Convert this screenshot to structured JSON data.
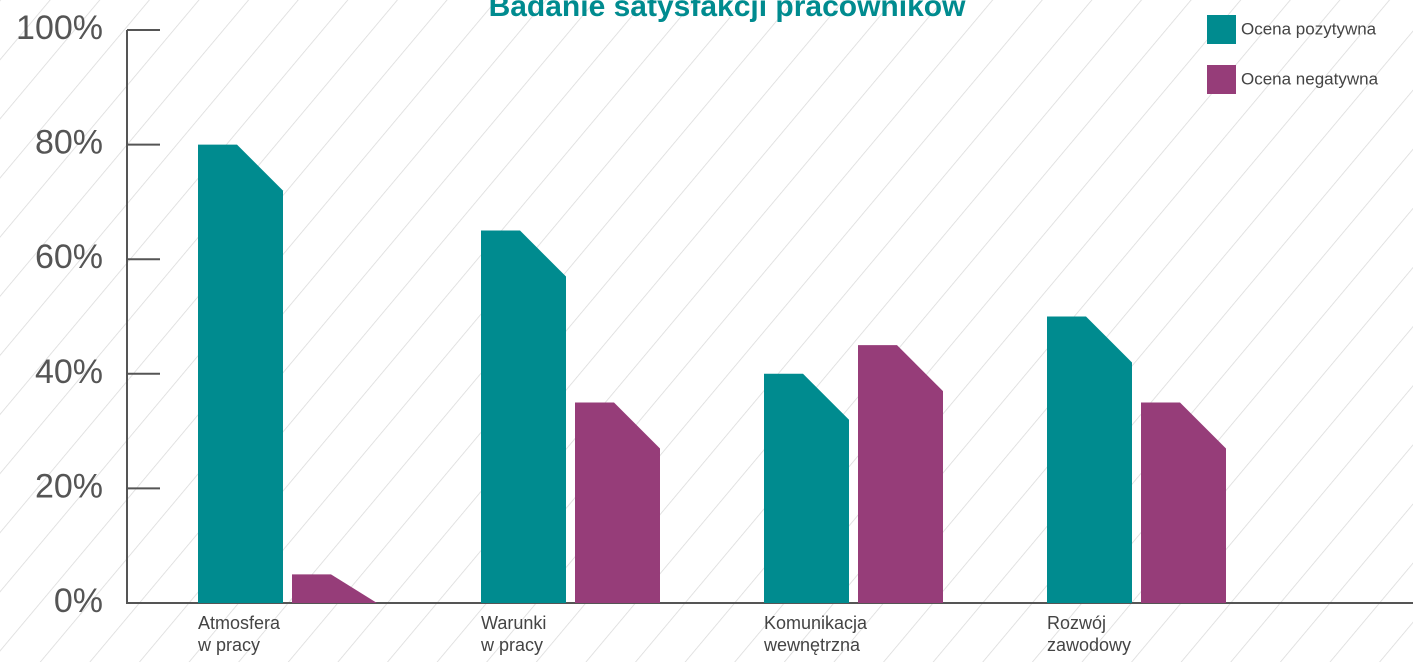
{
  "chart_data": {
    "type": "bar",
    "title": "Badanie satysfakcji pracowników",
    "categories": [
      "Atmosfera\nw pracy",
      "Warunki\nw pracy",
      "Komunikacja\nwewnętrzna",
      "Rozwój\nzawodowy"
    ],
    "series": [
      {
        "name": "Ocena pozytywna",
        "color": "#008b8f",
        "values": [
          80,
          65,
          40,
          50
        ]
      },
      {
        "name": "Ocena negatywna",
        "color": "#963d79",
        "values": [
          5,
          35,
          45,
          35
        ]
      }
    ],
    "ylim": [
      0,
      100
    ],
    "yticks": [
      {
        "value": 0,
        "label": "0%"
      },
      {
        "value": 20,
        "label": "20%"
      },
      {
        "value": 40,
        "label": "40%"
      },
      {
        "value": 60,
        "label": "60%"
      },
      {
        "value": 80,
        "label": "80%"
      },
      {
        "value": 100,
        "label": "100%"
      }
    ],
    "legend": "top-right"
  }
}
